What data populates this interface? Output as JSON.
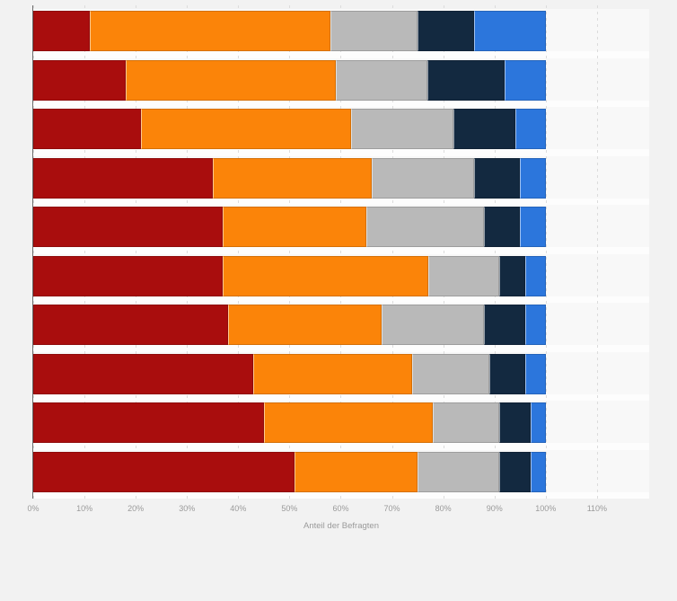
{
  "page": {
    "background_color": "#f2f2f2",
    "plot_background_color": "#f8f8f8",
    "gridline_color": "#dcdcdc",
    "axis_line_color": "#6e6e6e",
    "tick_label_color": "#9a9a9a"
  },
  "chart_data": {
    "type": "bar",
    "orientation": "horizontal",
    "stacked": true,
    "title": "",
    "xlabel": "Anteil der Befragten",
    "ylabel": "",
    "xlim": [
      0,
      110
    ],
    "x_ticks": [
      "0%",
      "10%",
      "20%",
      "30%",
      "40%",
      "50%",
      "60%",
      "70%",
      "80%",
      "90%",
      "100%",
      "110%"
    ],
    "grid": "dashed-vertical",
    "legend": "none",
    "categories": [
      "",
      "",
      "",
      "",
      "",
      "",
      "",
      "",
      "",
      ""
    ],
    "series": [
      {
        "name": "dark-red",
        "color": "#a90d0d",
        "values": [
          11,
          18,
          21,
          35,
          37,
          37,
          38,
          43,
          45,
          51
        ]
      },
      {
        "name": "orange",
        "color": "#fb8409",
        "values": [
          47,
          41,
          41,
          31,
          28,
          40,
          30,
          31,
          33,
          24
        ]
      },
      {
        "name": "gray",
        "color": "#b9b9b9",
        "values": [
          17,
          18,
          20,
          20,
          23,
          14,
          20,
          15,
          13,
          16
        ]
      },
      {
        "name": "dark-navy",
        "color": "#132940",
        "values": [
          11,
          15,
          12,
          9,
          7,
          5,
          8,
          7,
          6,
          6
        ]
      },
      {
        "name": "blue",
        "color": "#2c76dc",
        "values": [
          14,
          8,
          6,
          5,
          5,
          4,
          4,
          4,
          3,
          3
        ]
      }
    ]
  }
}
